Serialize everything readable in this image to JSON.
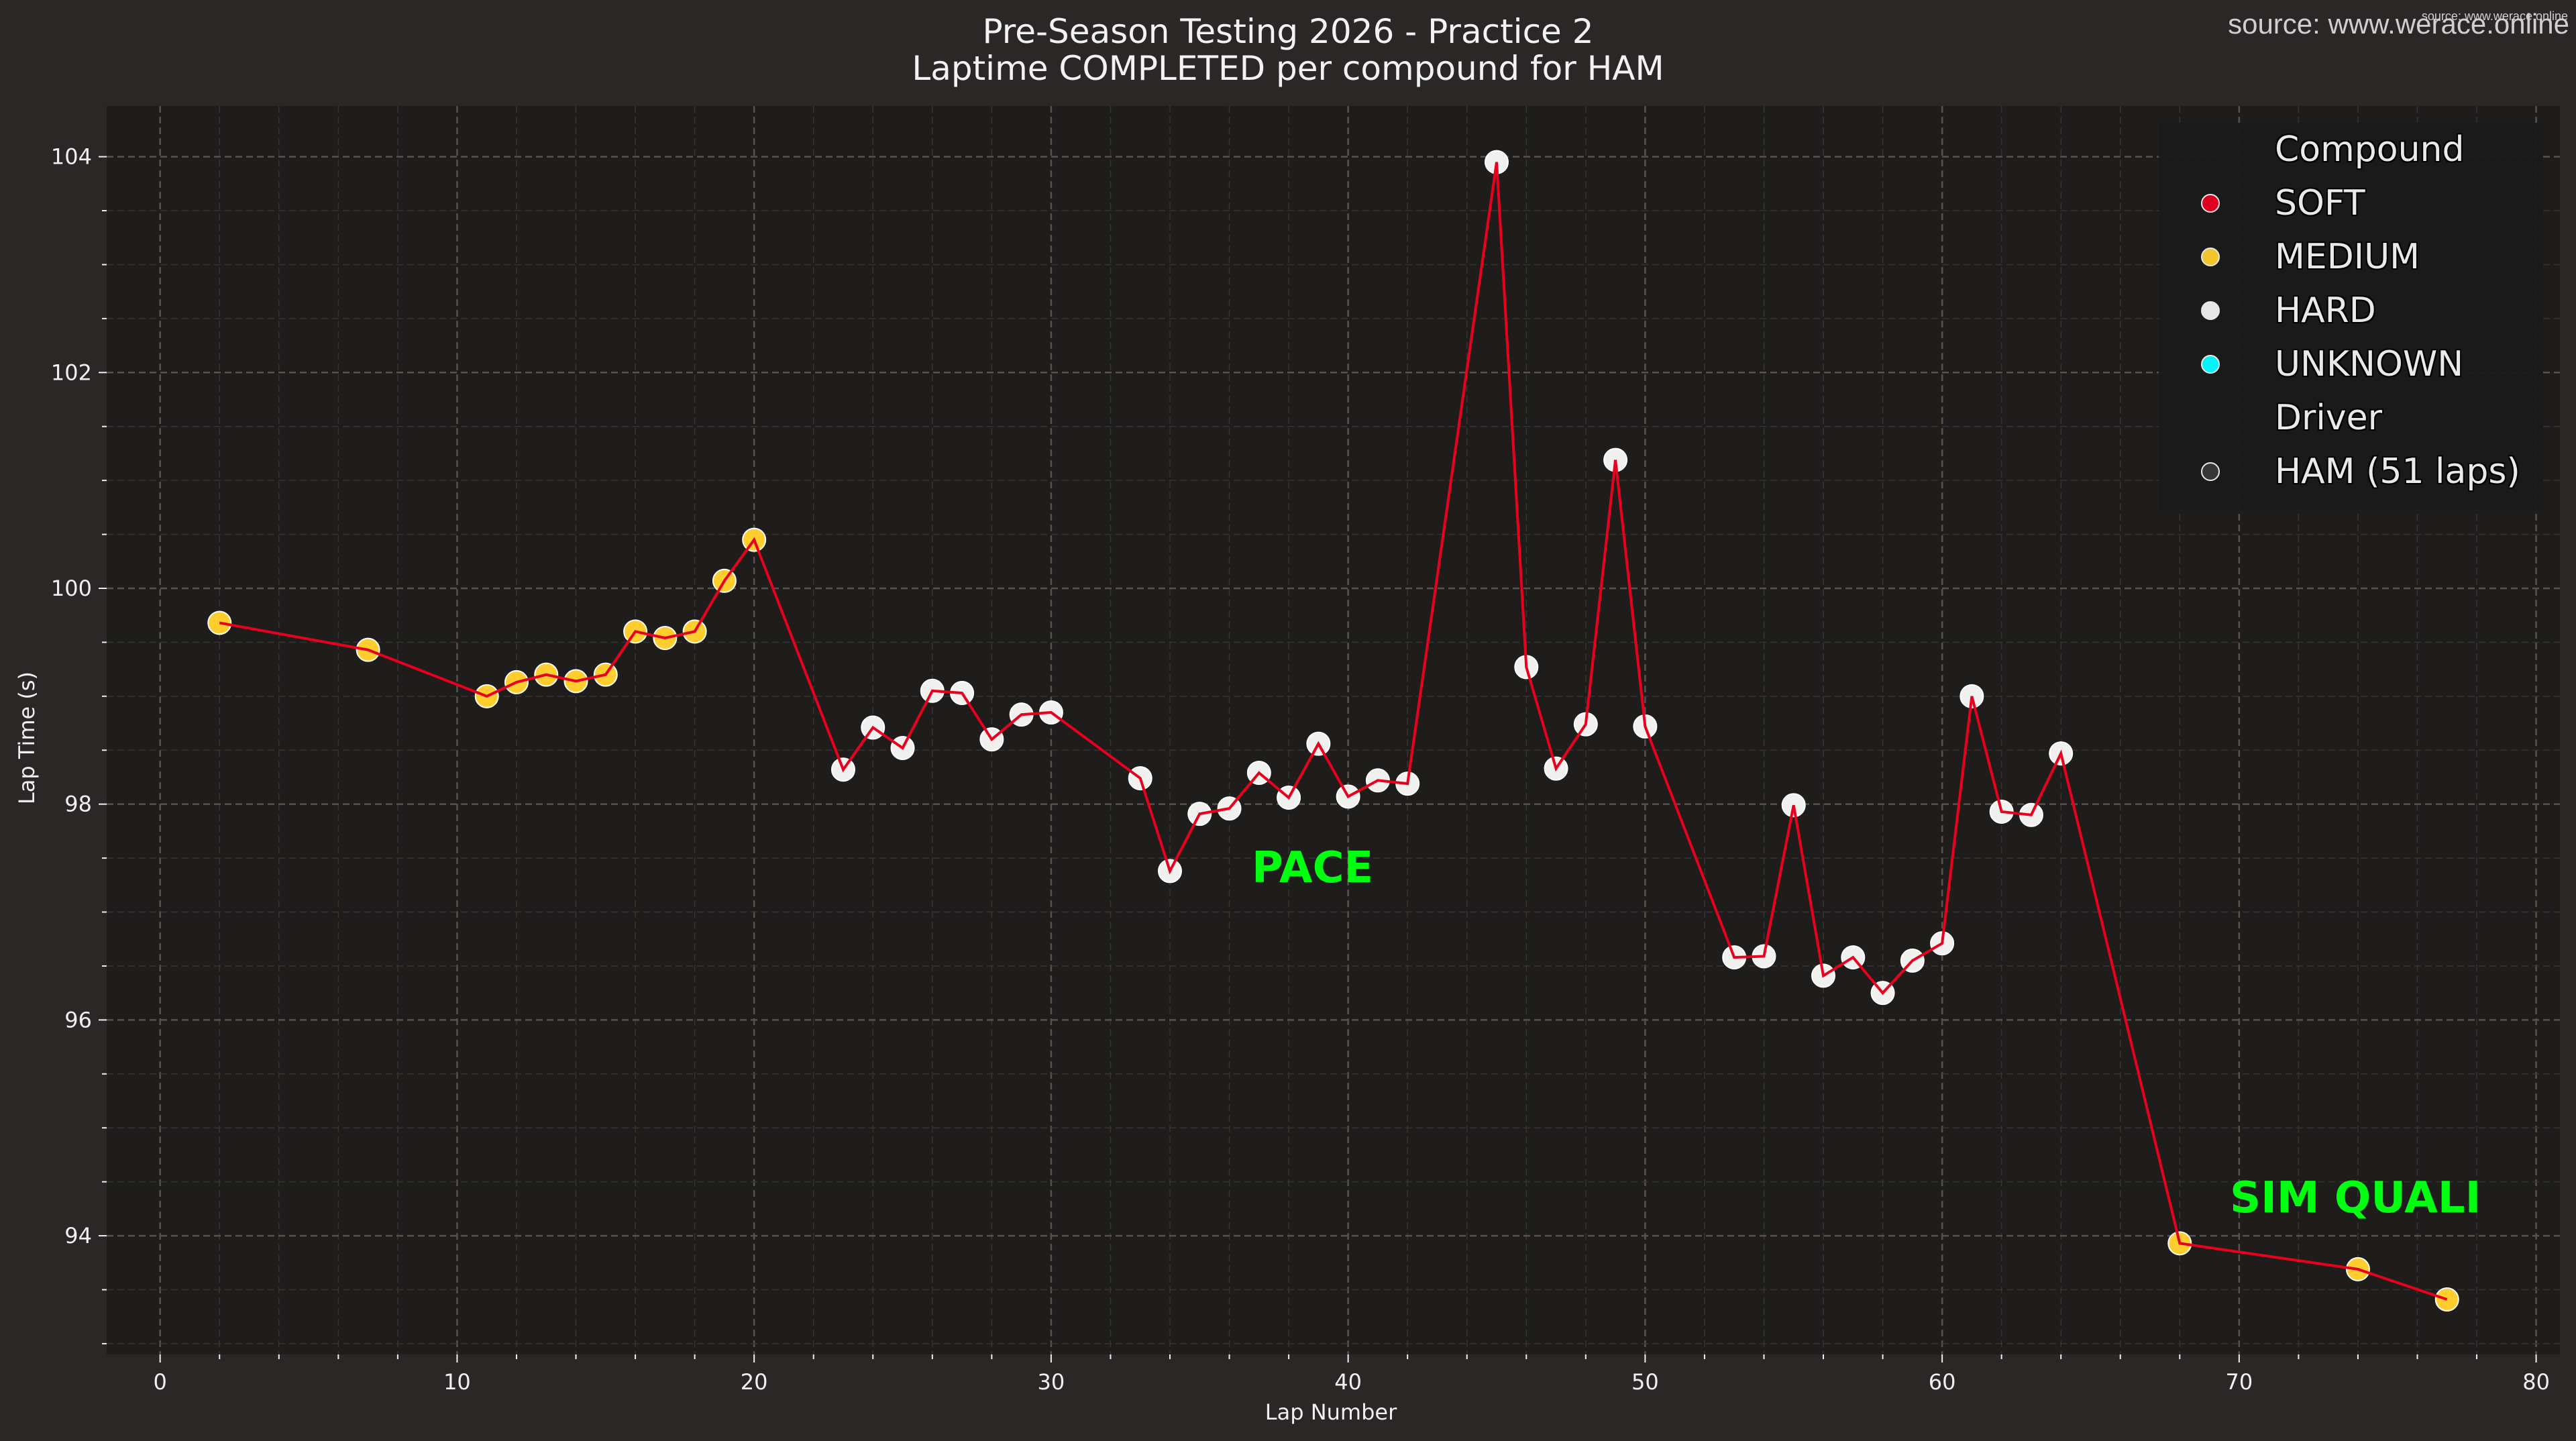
{
  "header": {
    "title_line1": "Pre-Season Testing 2026 - Practice 2",
    "title_line2": "Laptime COMPLETED per compound for HAM",
    "source_large": "source: www.werace.online",
    "source_small": "source: www.werace.online"
  },
  "legend": {
    "compound_title": "Compound",
    "items": [
      {
        "label": "SOFT",
        "color": "#e8001e"
      },
      {
        "label": "MEDIUM",
        "color": "#ffce2e"
      },
      {
        "label": "HARD",
        "color": "#f0f0ee"
      },
      {
        "label": "UNKNOWN",
        "color": "#00ffff"
      }
    ],
    "driver_title": "Driver",
    "driver_item": {
      "label": "HAM (51 laps)",
      "color": "#3a3838"
    }
  },
  "annotations": {
    "pace": "PACE",
    "sim_quali": "SIM QUALI",
    "color": "#00ff11"
  },
  "colors": {
    "figure_bg": "#2a2726",
    "plot_bg": "#1e1d1c",
    "line": "#e8001e",
    "grid_major": "#555250",
    "grid_minor": "#363433",
    "medium": "#ffce2e",
    "hard": "#f0f0ee"
  },
  "chart_data": {
    "type": "line",
    "title": "Pre-Season Testing 2026 - Practice 2 / Laptime COMPLETED per compound for HAM",
    "xlabel": "Lap Number",
    "ylabel": "Lap Time (s)",
    "xlim": [
      -1.8,
      80.8
    ],
    "ylim": [
      92.9,
      104.47
    ],
    "xticks": [
      0,
      10,
      20,
      30,
      40,
      50,
      60,
      70,
      80
    ],
    "yticks": [
      94,
      96,
      98,
      100,
      102,
      104
    ],
    "grid": true,
    "legend_position": "upper right",
    "series": [
      {
        "name": "HAM (51 laps)",
        "points": [
          {
            "lap": 2,
            "time": 99.68,
            "compound": "MEDIUM"
          },
          {
            "lap": 7,
            "time": 99.43,
            "compound": "MEDIUM"
          },
          {
            "lap": 11,
            "time": 99.0,
            "compound": "MEDIUM"
          },
          {
            "lap": 12,
            "time": 99.13,
            "compound": "MEDIUM"
          },
          {
            "lap": 13,
            "time": 99.2,
            "compound": "MEDIUM"
          },
          {
            "lap": 14,
            "time": 99.14,
            "compound": "MEDIUM"
          },
          {
            "lap": 15,
            "time": 99.2,
            "compound": "MEDIUM"
          },
          {
            "lap": 16,
            "time": 99.6,
            "compound": "MEDIUM"
          },
          {
            "lap": 17,
            "time": 99.54,
            "compound": "MEDIUM"
          },
          {
            "lap": 18,
            "time": 99.6,
            "compound": "MEDIUM"
          },
          {
            "lap": 19,
            "time": 100.07,
            "compound": "MEDIUM"
          },
          {
            "lap": 20,
            "time": 100.45,
            "compound": "MEDIUM"
          },
          {
            "lap": 23,
            "time": 98.32,
            "compound": "HARD"
          },
          {
            "lap": 24,
            "time": 98.71,
            "compound": "HARD"
          },
          {
            "lap": 25,
            "time": 98.52,
            "compound": "HARD"
          },
          {
            "lap": 26,
            "time": 99.05,
            "compound": "HARD"
          },
          {
            "lap": 27,
            "time": 99.03,
            "compound": "HARD"
          },
          {
            "lap": 28,
            "time": 98.6,
            "compound": "HARD"
          },
          {
            "lap": 29,
            "time": 98.83,
            "compound": "HARD"
          },
          {
            "lap": 30,
            "time": 98.85,
            "compound": "HARD"
          },
          {
            "lap": 33,
            "time": 98.24,
            "compound": "HARD"
          },
          {
            "lap": 34,
            "time": 97.38,
            "compound": "HARD"
          },
          {
            "lap": 35,
            "time": 97.91,
            "compound": "HARD"
          },
          {
            "lap": 36,
            "time": 97.96,
            "compound": "HARD"
          },
          {
            "lap": 37,
            "time": 98.29,
            "compound": "HARD"
          },
          {
            "lap": 38,
            "time": 98.06,
            "compound": "HARD"
          },
          {
            "lap": 39,
            "time": 98.56,
            "compound": "HARD"
          },
          {
            "lap": 40,
            "time": 98.07,
            "compound": "HARD"
          },
          {
            "lap": 41,
            "time": 98.22,
            "compound": "HARD"
          },
          {
            "lap": 42,
            "time": 98.19,
            "compound": "HARD"
          },
          {
            "lap": 45,
            "time": 103.95,
            "compound": "HARD"
          },
          {
            "lap": 46,
            "time": 99.27,
            "compound": "HARD"
          },
          {
            "lap": 47,
            "time": 98.33,
            "compound": "HARD"
          },
          {
            "lap": 48,
            "time": 98.74,
            "compound": "HARD"
          },
          {
            "lap": 49,
            "time": 101.19,
            "compound": "HARD"
          },
          {
            "lap": 50,
            "time": 98.72,
            "compound": "HARD"
          },
          {
            "lap": 53,
            "time": 96.58,
            "compound": "HARD"
          },
          {
            "lap": 54,
            "time": 96.59,
            "compound": "HARD"
          },
          {
            "lap": 55,
            "time": 97.99,
            "compound": "HARD"
          },
          {
            "lap": 56,
            "time": 96.41,
            "compound": "HARD"
          },
          {
            "lap": 57,
            "time": 96.58,
            "compound": "HARD"
          },
          {
            "lap": 58,
            "time": 96.25,
            "compound": "HARD"
          },
          {
            "lap": 59,
            "time": 96.55,
            "compound": "HARD"
          },
          {
            "lap": 60,
            "time": 96.71,
            "compound": "HARD"
          },
          {
            "lap": 61,
            "time": 99.0,
            "compound": "HARD"
          },
          {
            "lap": 62,
            "time": 97.93,
            "compound": "HARD"
          },
          {
            "lap": 63,
            "time": 97.9,
            "compound": "HARD"
          },
          {
            "lap": 64,
            "time": 98.47,
            "compound": "HARD"
          },
          {
            "lap": 68,
            "time": 93.93,
            "compound": "MEDIUM"
          },
          {
            "lap": 74,
            "time": 93.69,
            "compound": "MEDIUM"
          },
          {
            "lap": 77,
            "time": 93.41,
            "compound": "MEDIUM"
          }
        ]
      }
    ],
    "annotations": [
      {
        "text": "PACE",
        "lap": 38.2,
        "time": 97.3
      },
      {
        "text": "SIM QUALI",
        "lap": 73.0,
        "time": 94.2
      }
    ]
  }
}
